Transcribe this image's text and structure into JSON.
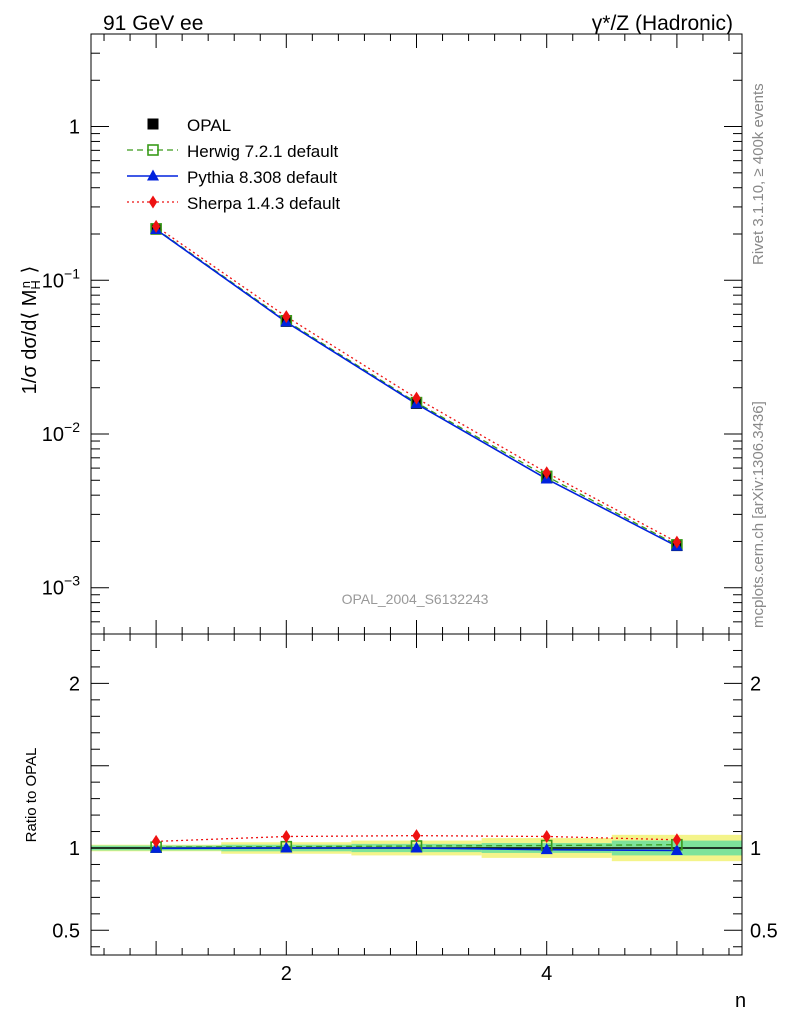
{
  "header": {
    "left_title": "91 GeV ee",
    "right_title": "γ*/Z (Hadronic)"
  },
  "side_labels": {
    "rivet": "Rivet 3.1.10, ≥ 400k events",
    "mcplots": "mcplots.cern.ch [arXiv:1306.3436]"
  },
  "watermark": "OPAL_2004_S6132243",
  "chart_data": [
    {
      "type": "line",
      "panel": "main",
      "yscale": "log",
      "ylabel": "1/σ dσ/d⟨ M_H^n ⟩",
      "xlabel": "n",
      "xlim": [
        0.5,
        5.5
      ],
      "ylim": [
        0.0005,
        4
      ],
      "yticks": [
        {
          "value": 0.001,
          "label": "10",
          "exp": "−3"
        },
        {
          "value": 0.01,
          "label": "10",
          "exp": "−2"
        },
        {
          "value": 0.1,
          "label": "10",
          "exp": "−1"
        },
        {
          "value": 1,
          "label": "1",
          "exp": ""
        }
      ],
      "x": [
        1,
        2,
        3,
        4,
        5
      ],
      "series": [
        {
          "name": "OPAL",
          "color": "#000000",
          "style": "marker",
          "marker": "square",
          "values": [
            0.215,
            0.054,
            0.0158,
            0.0052,
            0.00188
          ]
        },
        {
          "name": "Herwig 7.2.1 default",
          "color": "#3a9b1a",
          "style": "dashed",
          "marker": "open-square",
          "values": [
            0.216,
            0.0545,
            0.016,
            0.0053,
            0.0019
          ]
        },
        {
          "name": "Pythia 8.308 default",
          "color": "#0022dd",
          "style": "solid",
          "marker": "triangle",
          "values": [
            0.214,
            0.0535,
            0.0157,
            0.0051,
            0.00186
          ]
        },
        {
          "name": "Sherpa 1.4.3 default",
          "color": "#ee1111",
          "style": "dotted",
          "marker": "diamond",
          "values": [
            0.224,
            0.058,
            0.0171,
            0.0056,
            0.00198
          ]
        }
      ]
    },
    {
      "type": "line",
      "panel": "ratio",
      "ylabel": "Ratio to OPAL",
      "xlabel": "n",
      "xlim": [
        0.5,
        5.5
      ],
      "ylim": [
        0.35,
        2.3
      ],
      "yticks": [
        {
          "value": 0.5,
          "label": "0.5"
        },
        {
          "value": 1,
          "label": "1"
        },
        {
          "value": 2,
          "label": "2"
        }
      ],
      "xticks": [
        {
          "value": 2,
          "label": "2"
        },
        {
          "value": 4,
          "label": "4"
        }
      ],
      "x": [
        1,
        2,
        3,
        4,
        5
      ],
      "bands": {
        "bins": [
          [
            0.5,
            1.5
          ],
          [
            1.5,
            2.5
          ],
          [
            2.5,
            3.5
          ],
          [
            3.5,
            4.5
          ],
          [
            4.5,
            5.5
          ]
        ],
        "inner": [
          0.015,
          0.02,
          0.025,
          0.03,
          0.045
        ],
        "outer": [
          0.02,
          0.035,
          0.045,
          0.06,
          0.08
        ],
        "inner_color": "#7de39a",
        "outer_color": "#f4f48a"
      },
      "series": [
        {
          "name": "Herwig 7.2.1 default",
          "color": "#3a9b1a",
          "style": "dashed",
          "marker": "open-square",
          "values": [
            1.005,
            1.008,
            1.012,
            1.015,
            1.02
          ]
        },
        {
          "name": "Pythia 8.308 default",
          "color": "#0022dd",
          "style": "solid",
          "marker": "triangle",
          "values": [
            0.998,
            1.0,
            1.0,
            0.99,
            0.985
          ]
        },
        {
          "name": "Sherpa 1.4.3 default",
          "color": "#ee1111",
          "style": "dotted",
          "marker": "diamond",
          "values": [
            1.04,
            1.07,
            1.075,
            1.07,
            1.05
          ]
        }
      ]
    }
  ]
}
